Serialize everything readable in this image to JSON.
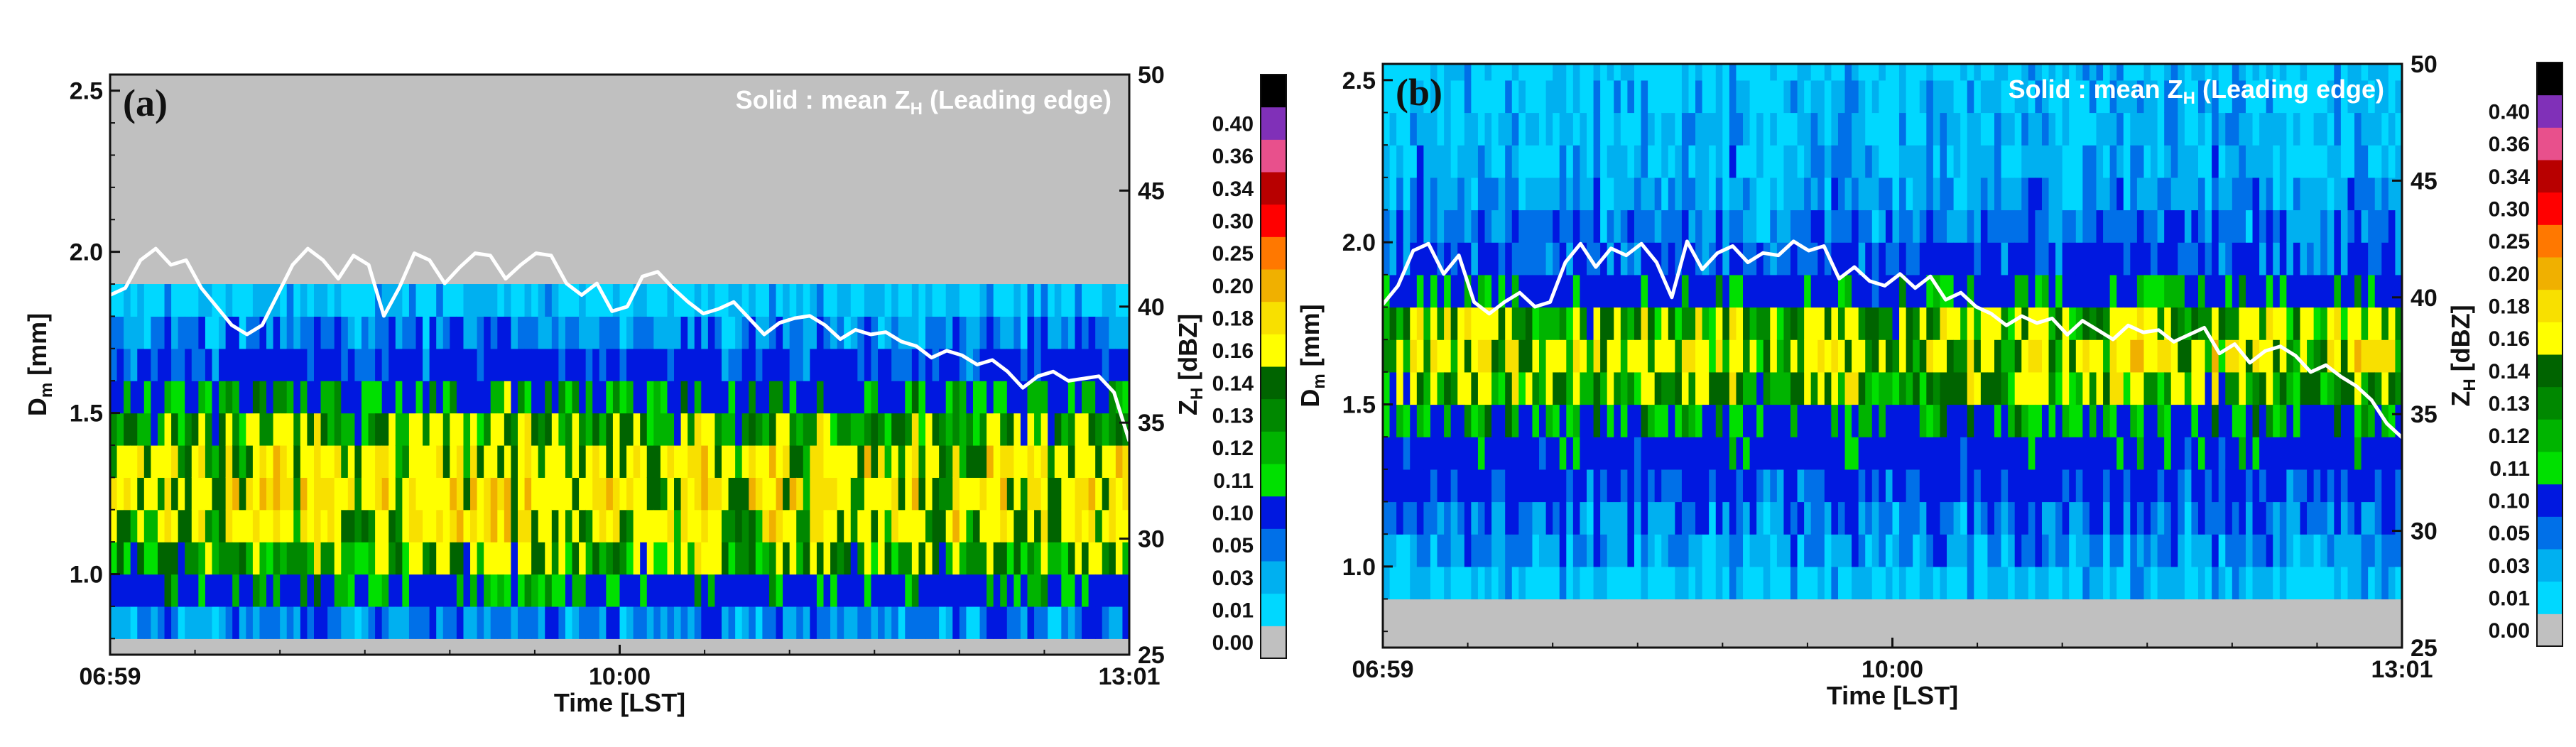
{
  "chart_data": [
    {
      "type": "heatmap",
      "panel_label": "(a)",
      "annotation": "Solid : mean Z",
      "annotation_sub": "H",
      "annotation_tail": " (Leading edge)",
      "xlabel": "Time [LST]",
      "x_ticks": [
        "06:59",
        "10:00",
        "13:01"
      ],
      "ylabel_left": "D",
      "ylabel_left_sub": "m",
      "ylabel_left_tail": " [mm]",
      "ylim_left": [
        0.75,
        2.55
      ],
      "yticks_left": [
        "1.0",
        "1.5",
        "2.0",
        "2.5"
      ],
      "ylabel_right": "Z",
      "ylabel_right_sub": "H",
      "ylabel_right_tail": " [dBZ]",
      "ylim_right": [
        25,
        50
      ],
      "yticks_right": [
        "25",
        "30",
        "35",
        "40",
        "45",
        "50"
      ],
      "n_time": 150,
      "seed": 11,
      "profile": [
        {
          "y": 0.8,
          "v": 0
        },
        {
          "y": 0.9,
          "v": 0.07
        },
        {
          "y": 1.0,
          "v": 0.12
        },
        {
          "y": 1.1,
          "v": 0.14
        },
        {
          "y": 1.2,
          "v": 0.155
        },
        {
          "y": 1.3,
          "v": 0.16
        },
        {
          "y": 1.4,
          "v": 0.14
        },
        {
          "y": 1.5,
          "v": 0.12
        },
        {
          "y": 1.6,
          "v": 0.08
        },
        {
          "y": 1.7,
          "v": 0.045
        },
        {
          "y": 1.8,
          "v": 0.018
        },
        {
          "y": 1.9,
          "v": 0.0
        },
        {
          "y": 2.0,
          "v": 0.0
        },
        {
          "y": 2.1,
          "v": 0.0
        },
        {
          "y": 2.2,
          "v": 0.0
        },
        {
          "y": 2.3,
          "v": 0.0
        },
        {
          "y": 2.4,
          "v": 0.0
        },
        {
          "y": 2.5,
          "v": 0.0
        }
      ],
      "mean_zh_dbz": [
        40.5,
        40.8,
        42.0,
        42.5,
        41.8,
        42.0,
        40.8,
        40.0,
        39.2,
        38.8,
        39.2,
        40.5,
        41.8,
        42.5,
        42.0,
        41.2,
        42.2,
        41.8,
        39.6,
        40.8,
        42.3,
        42.0,
        41.0,
        41.7,
        42.3,
        42.2,
        41.2,
        41.8,
        42.3,
        42.2,
        41.0,
        40.5,
        41.0,
        39.8,
        40.0,
        41.3,
        41.5,
        40.8,
        40.2,
        39.7,
        39.9,
        40.2,
        39.5,
        38.8,
        39.3,
        39.5,
        39.6,
        39.2,
        38.6,
        39.0,
        38.8,
        38.9,
        38.5,
        38.3,
        37.8,
        38.1,
        37.9,
        37.5,
        37.7,
        37.2,
        36.5,
        37.0,
        37.2,
        36.8,
        36.9,
        37.0,
        36.3,
        34.2
      ],
      "colorbar": {
        "ticks": [
          "0.00",
          "0.01",
          "0.03",
          "0.05",
          "0.10",
          "0.11",
          "0.12",
          "0.13",
          "0.14",
          "0.16",
          "0.18",
          "0.20",
          "0.25",
          "0.30",
          "0.34",
          "0.36",
          "0.40"
        ],
        "colors": [
          "#c0c0c0",
          "#00d8ff",
          "#00b0f0",
          "#0070e8",
          "#0018e0",
          "#00e000",
          "#00b400",
          "#008800",
          "#006400",
          "#ffff00",
          "#f8e000",
          "#f0b000",
          "#ff7800",
          "#ff0000",
          "#b80000",
          "#e8508c",
          "#8030b8",
          "#000000"
        ]
      }
    },
    {
      "type": "heatmap",
      "panel_label": "(b)",
      "annotation": "Solid : mean Z",
      "annotation_sub": "H",
      "annotation_tail": " (Leading edge)",
      "xlabel": "Time [LST]",
      "x_ticks": [
        "06:59",
        "10:00",
        "13:01"
      ],
      "ylabel_left": "D",
      "ylabel_left_sub": "m",
      "ylabel_left_tail": " [mm]",
      "ylim_left": [
        0.75,
        2.55
      ],
      "yticks_left": [
        "1.0",
        "1.5",
        "2.0",
        "2.5"
      ],
      "ylabel_right": "Z",
      "ylabel_right_sub": "H",
      "ylabel_right_tail": " [dBZ]",
      "ylim_right": [
        25,
        50
      ],
      "yticks_right": [
        "25",
        "30",
        "35",
        "40",
        "45",
        "50"
      ],
      "n_time": 150,
      "seed": 29,
      "profile": [
        {
          "y": 0.8,
          "v": 0.0
        },
        {
          "y": 0.9,
          "v": 0.0
        },
        {
          "y": 1.0,
          "v": 0.02
        },
        {
          "y": 1.1,
          "v": 0.035
        },
        {
          "y": 1.2,
          "v": 0.05
        },
        {
          "y": 1.3,
          "v": 0.07
        },
        {
          "y": 1.4,
          "v": 0.085
        },
        {
          "y": 1.5,
          "v": 0.12
        },
        {
          "y": 1.6,
          "v": 0.145
        },
        {
          "y": 1.7,
          "v": 0.15
        },
        {
          "y": 1.8,
          "v": 0.12
        },
        {
          "y": 1.9,
          "v": 0.06
        },
        {
          "y": 2.0,
          "v": 0.045
        },
        {
          "y": 2.1,
          "v": 0.03
        },
        {
          "y": 2.2,
          "v": 0.02
        },
        {
          "y": 2.3,
          "v": 0.015
        },
        {
          "y": 2.4,
          "v": 0.011
        },
        {
          "y": 2.5,
          "v": 0.008
        }
      ],
      "mean_zh_dbz": [
        39.7,
        40.5,
        42.0,
        42.3,
        41.0,
        41.8,
        39.8,
        39.3,
        39.8,
        40.2,
        39.6,
        39.8,
        41.5,
        42.3,
        41.3,
        42.1,
        41.8,
        42.3,
        41.5,
        40.0,
        42.4,
        41.2,
        41.9,
        42.2,
        41.5,
        41.9,
        41.8,
        42.4,
        42.0,
        42.2,
        40.8,
        41.3,
        40.7,
        40.5,
        41.0,
        40.4,
        40.9,
        39.9,
        40.2,
        39.6,
        39.3,
        38.8,
        39.2,
        38.9,
        39.1,
        38.4,
        39.0,
        38.6,
        38.2,
        38.8,
        38.5,
        38.6,
        38.1,
        38.4,
        38.7,
        37.6,
        38.0,
        37.2,
        37.7,
        37.9,
        37.5,
        36.8,
        37.1,
        36.6,
        36.2,
        35.6,
        34.6,
        34.0
      ],
      "colorbar": {
        "ticks": [
          "0.00",
          "0.01",
          "0.03",
          "0.05",
          "0.10",
          "0.11",
          "0.12",
          "0.13",
          "0.14",
          "0.16",
          "0.18",
          "0.20",
          "0.25",
          "0.30",
          "0.34",
          "0.36",
          "0.40"
        ],
        "colors": [
          "#c0c0c0",
          "#00d8ff",
          "#00b0f0",
          "#0070e8",
          "#0018e0",
          "#00e000",
          "#00b400",
          "#008800",
          "#006400",
          "#ffff00",
          "#f8e000",
          "#f0b000",
          "#ff7800",
          "#ff0000",
          "#b80000",
          "#e8508c",
          "#8030b8",
          "#000000"
        ]
      }
    }
  ]
}
